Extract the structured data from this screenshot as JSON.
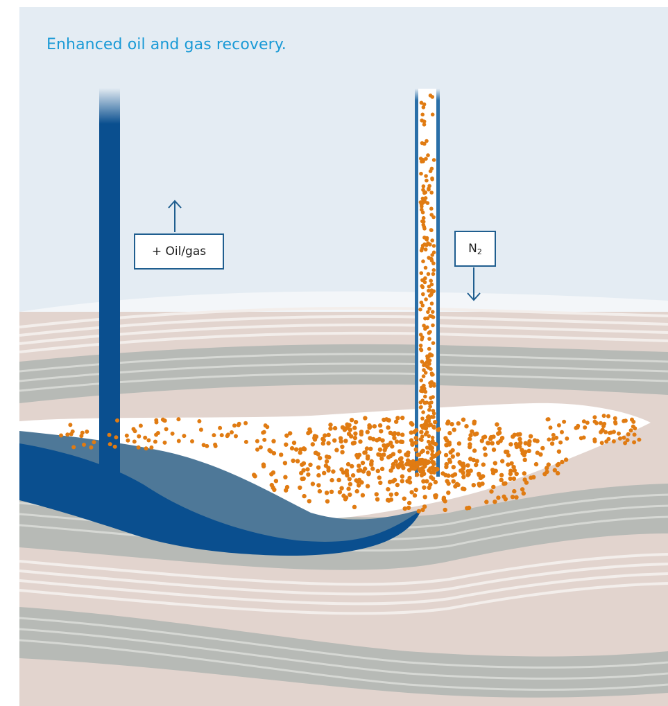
{
  "title": "Enhanced oil and gas recovery.",
  "labels": {
    "production": "+ Oil/gas",
    "injection_main": "N",
    "injection_sub": "2"
  },
  "colors": {
    "sky": "#e4ecf3",
    "title": "#1a9ad6",
    "production_pipe": "#0a4f8f",
    "oil_dark": "#0a4f8f",
    "oil_light": "#4e7898",
    "nitrogen_particles": "#e07b12",
    "reservoir": "#ffffff",
    "rock_beige": "#e2d4ce",
    "rock_gray": "#b7bab6",
    "rock_stripe": "#f3eeeb",
    "box_border": "#1f5e8f"
  },
  "icons": {
    "production_arrow": "arrow-up-icon",
    "injection_arrow": "arrow-down-icon"
  }
}
